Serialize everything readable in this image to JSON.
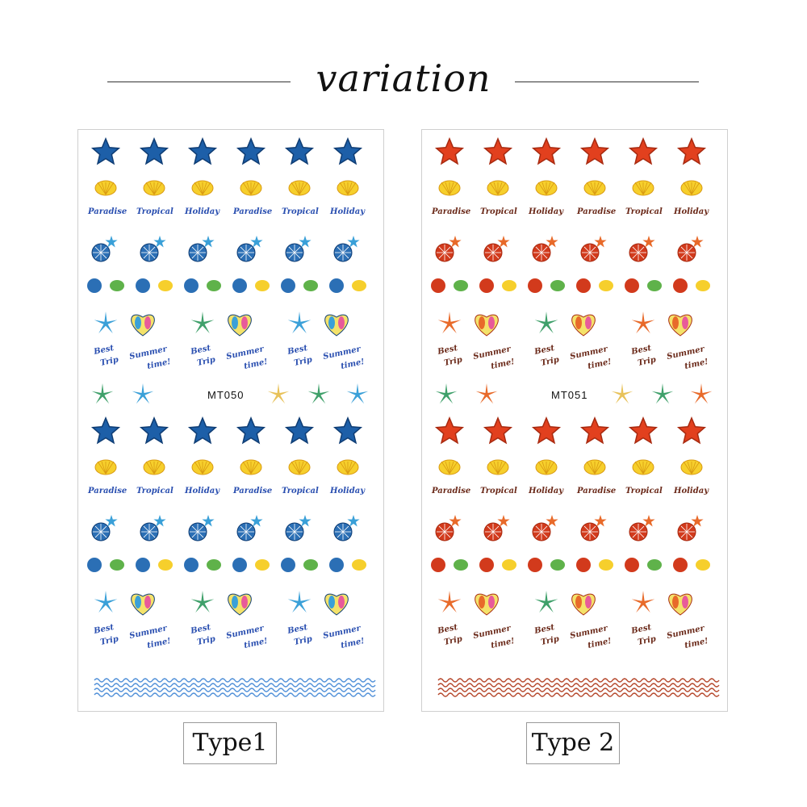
{
  "title": "variation",
  "sheets": [
    {
      "code": "MT050",
      "type_label": "Type1",
      "colors": {
        "star": "#1d5fa8",
        "star_dark": "#0f3d74",
        "text": "#2a4fb0",
        "wave": "#4f8fd8",
        "urchin": "#2b6fb5",
        "accent": "#3aa0d8"
      },
      "words_row": [
        "Paradise",
        "Tropical",
        "Holiday",
        "Paradise",
        "Tropical",
        "Holiday"
      ],
      "phrases": [
        "Best",
        "Trip",
        "Summer",
        "time!"
      ]
    },
    {
      "code": "MT051",
      "type_label": "Type 2",
      "colors": {
        "star": "#e2401e",
        "star_dark": "#a82a10",
        "text": "#6b2a1a",
        "wave": "#b5462a",
        "urchin": "#d23a1c",
        "accent": "#e86a2a"
      },
      "words_row": [
        "Paradise",
        "Tropical",
        "Holiday",
        "Paradise",
        "Tropical",
        "Holiday"
      ],
      "phrases": [
        "Best",
        "Trip",
        "Summer",
        "time!"
      ]
    }
  ],
  "icons": [
    "starfish-icon",
    "seashell-icon",
    "sea-urchin-icon",
    "flip-flops-heart-icon",
    "wave-border-icon"
  ]
}
